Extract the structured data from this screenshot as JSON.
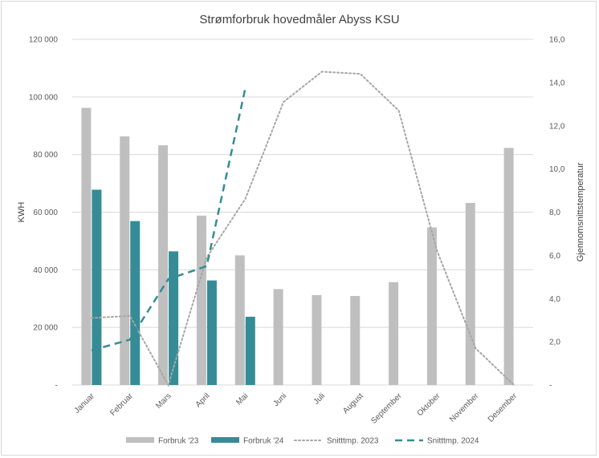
{
  "chart_data": {
    "type": "bar",
    "title": "Strømforbruk hovedmåler Abyss KSU",
    "categories": [
      "Januar",
      "Februar",
      "Mars",
      "April",
      "Mai",
      "Juni",
      "Juli",
      "August",
      "September",
      "Oktober",
      "November",
      "Desember"
    ],
    "series": [
      {
        "name": "Forbruk '23",
        "type": "bar",
        "axis": "left",
        "color": "#bfbfbf",
        "values": [
          96200,
          86300,
          83200,
          58800,
          45000,
          33300,
          31200,
          30900,
          35700,
          54700,
          63200,
          82300
        ]
      },
      {
        "name": "Forbruk '24",
        "type": "bar",
        "axis": "left",
        "color": "#358c96",
        "values": [
          67800,
          56900,
          46400,
          36300,
          23700,
          null,
          null,
          null,
          null,
          null,
          null,
          null
        ]
      },
      {
        "name": "Snitttmp. 2023",
        "type": "line",
        "style": "dotted",
        "axis": "right",
        "color": "#a6a6a6",
        "values": [
          3.1,
          3.2,
          0.0,
          5.9,
          8.6,
          13.1,
          14.5,
          14.4,
          12.7,
          6.2,
          1.7,
          0.0
        ]
      },
      {
        "name": "Snitttmp. 2024",
        "type": "line",
        "style": "dashed",
        "axis": "right",
        "color": "#358c96",
        "values": [
          1.6,
          2.1,
          4.9,
          5.5,
          13.7,
          null,
          null,
          null,
          null,
          null,
          null,
          null
        ]
      }
    ],
    "ylabel": "KWH",
    "ylabel_right": "Gjennomsnittstemperatur",
    "ylim": [
      0,
      120000
    ],
    "ylim_right": [
      0,
      16
    ],
    "y_ticks": [
      "-",
      "20 000",
      "40 000",
      "60 000",
      "80 000",
      "100 000",
      "120 000"
    ],
    "y_ticks_right": [
      "-",
      "2,0",
      "4,0",
      "6,0",
      "8,0",
      "10,0",
      "12,0",
      "14,0",
      "16,0"
    ],
    "grid": true,
    "legend_position": "bottom"
  }
}
